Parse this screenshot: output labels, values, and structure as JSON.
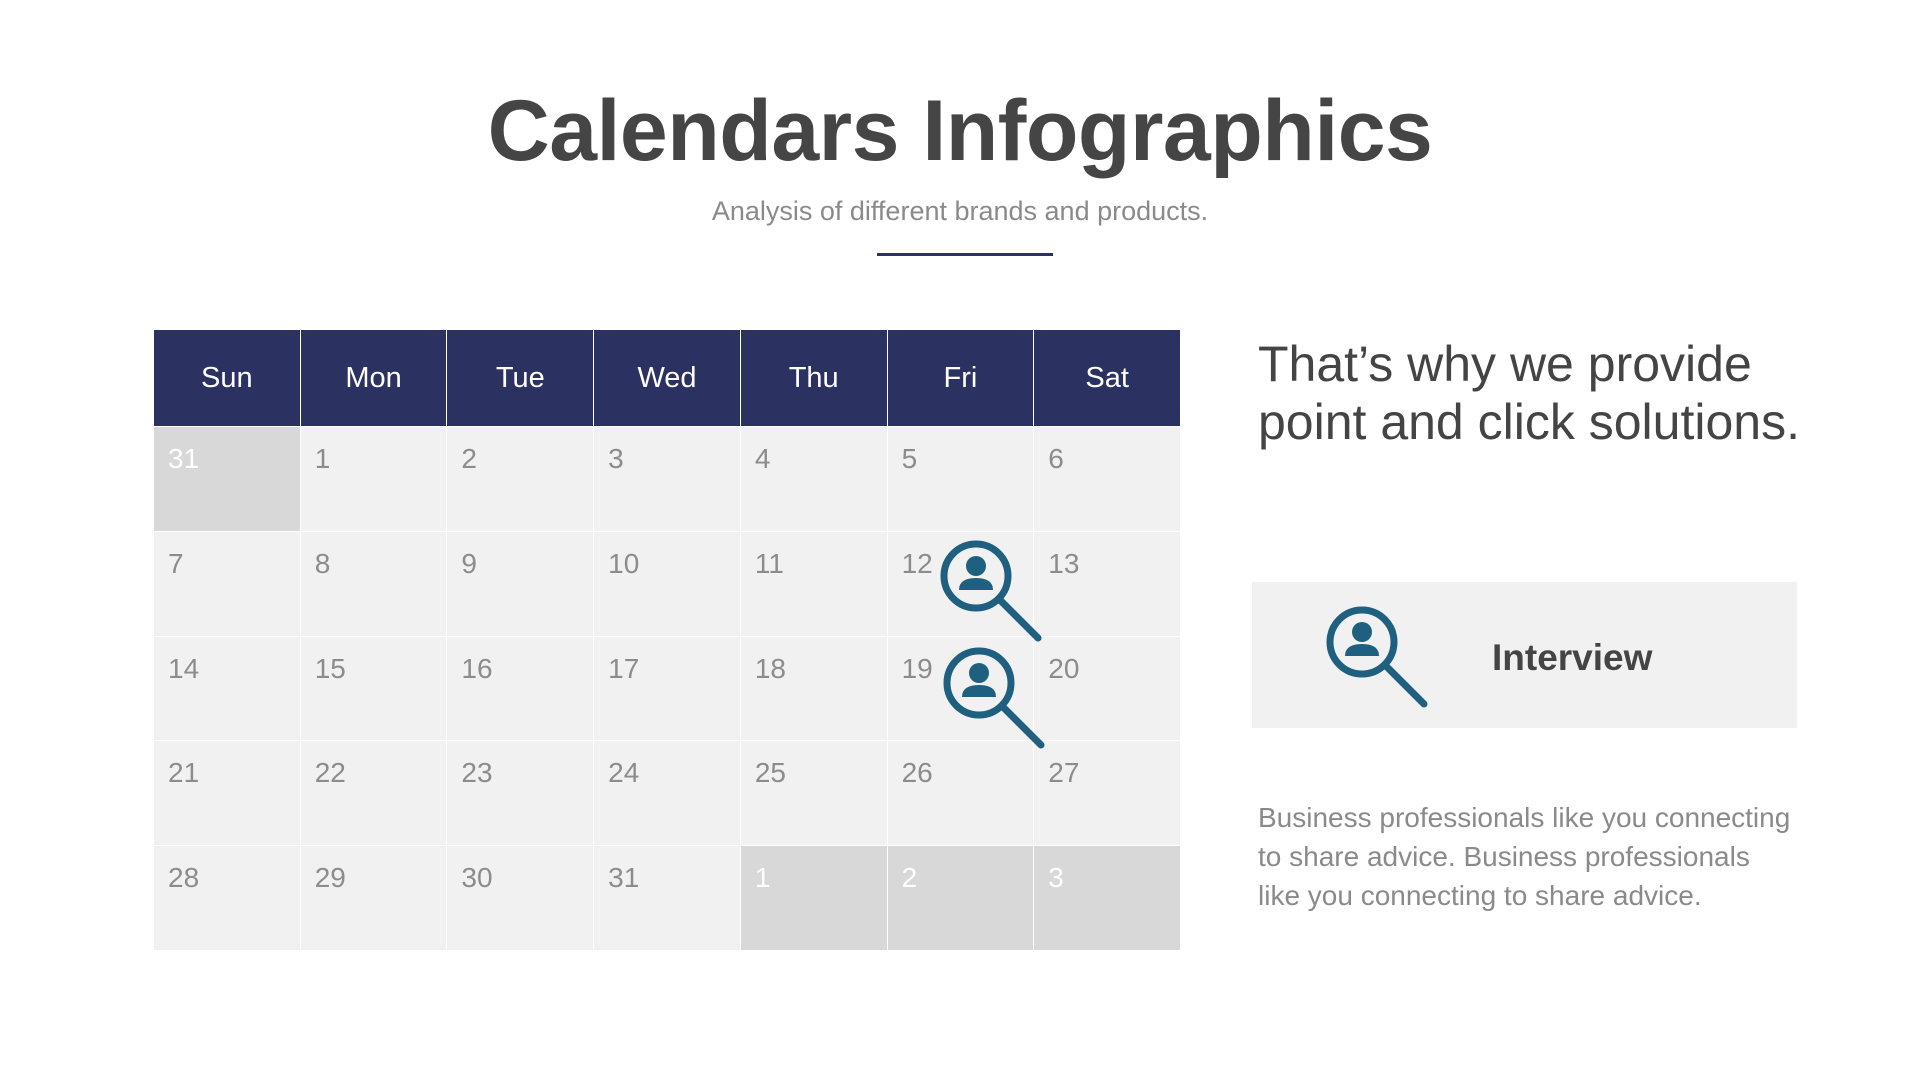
{
  "header": {
    "title": "Calendars Infographics",
    "subtitle": "Analysis of different brands and products."
  },
  "calendar": {
    "days": [
      "Sun",
      "Mon",
      "Tue",
      "Wed",
      "Thu",
      "Fri",
      "Sat"
    ],
    "weeks": [
      [
        {
          "d": "31",
          "out": true
        },
        {
          "d": "1"
        },
        {
          "d": "2"
        },
        {
          "d": "3"
        },
        {
          "d": "4"
        },
        {
          "d": "5"
        },
        {
          "d": "6"
        }
      ],
      [
        {
          "d": "7"
        },
        {
          "d": "8"
        },
        {
          "d": "9"
        },
        {
          "d": "10"
        },
        {
          "d": "11"
        },
        {
          "d": "12"
        },
        {
          "d": "13"
        }
      ],
      [
        {
          "d": "14"
        },
        {
          "d": "15"
        },
        {
          "d": "16"
        },
        {
          "d": "17"
        },
        {
          "d": "18"
        },
        {
          "d": "19"
        },
        {
          "d": "20"
        }
      ],
      [
        {
          "d": "21"
        },
        {
          "d": "22"
        },
        {
          "d": "23"
        },
        {
          "d": "24"
        },
        {
          "d": "25"
        },
        {
          "d": "26"
        },
        {
          "d": "27"
        }
      ],
      [
        {
          "d": "28"
        },
        {
          "d": "29"
        },
        {
          "d": "30"
        },
        {
          "d": "31"
        },
        {
          "d": "1",
          "out": true
        },
        {
          "d": "2",
          "out": true
        },
        {
          "d": "3",
          "out": true
        }
      ]
    ],
    "event_icon": "interview-search-person-icon",
    "event_dates": [
      "12",
      "19"
    ]
  },
  "side": {
    "headline": "That’s why we provide point and click solutions.",
    "legend_label": "Interview",
    "legend_icon": "interview-search-person-icon",
    "body": "Business professionals like you connecting to share advice. Business professionals like you connecting to share advice."
  },
  "colors": {
    "header_bg": "#2b3161",
    "cell_bg": "#f1f1f1",
    "outside_bg": "#d8d8d8",
    "icon": "#1f5f7f",
    "title": "#454545"
  }
}
